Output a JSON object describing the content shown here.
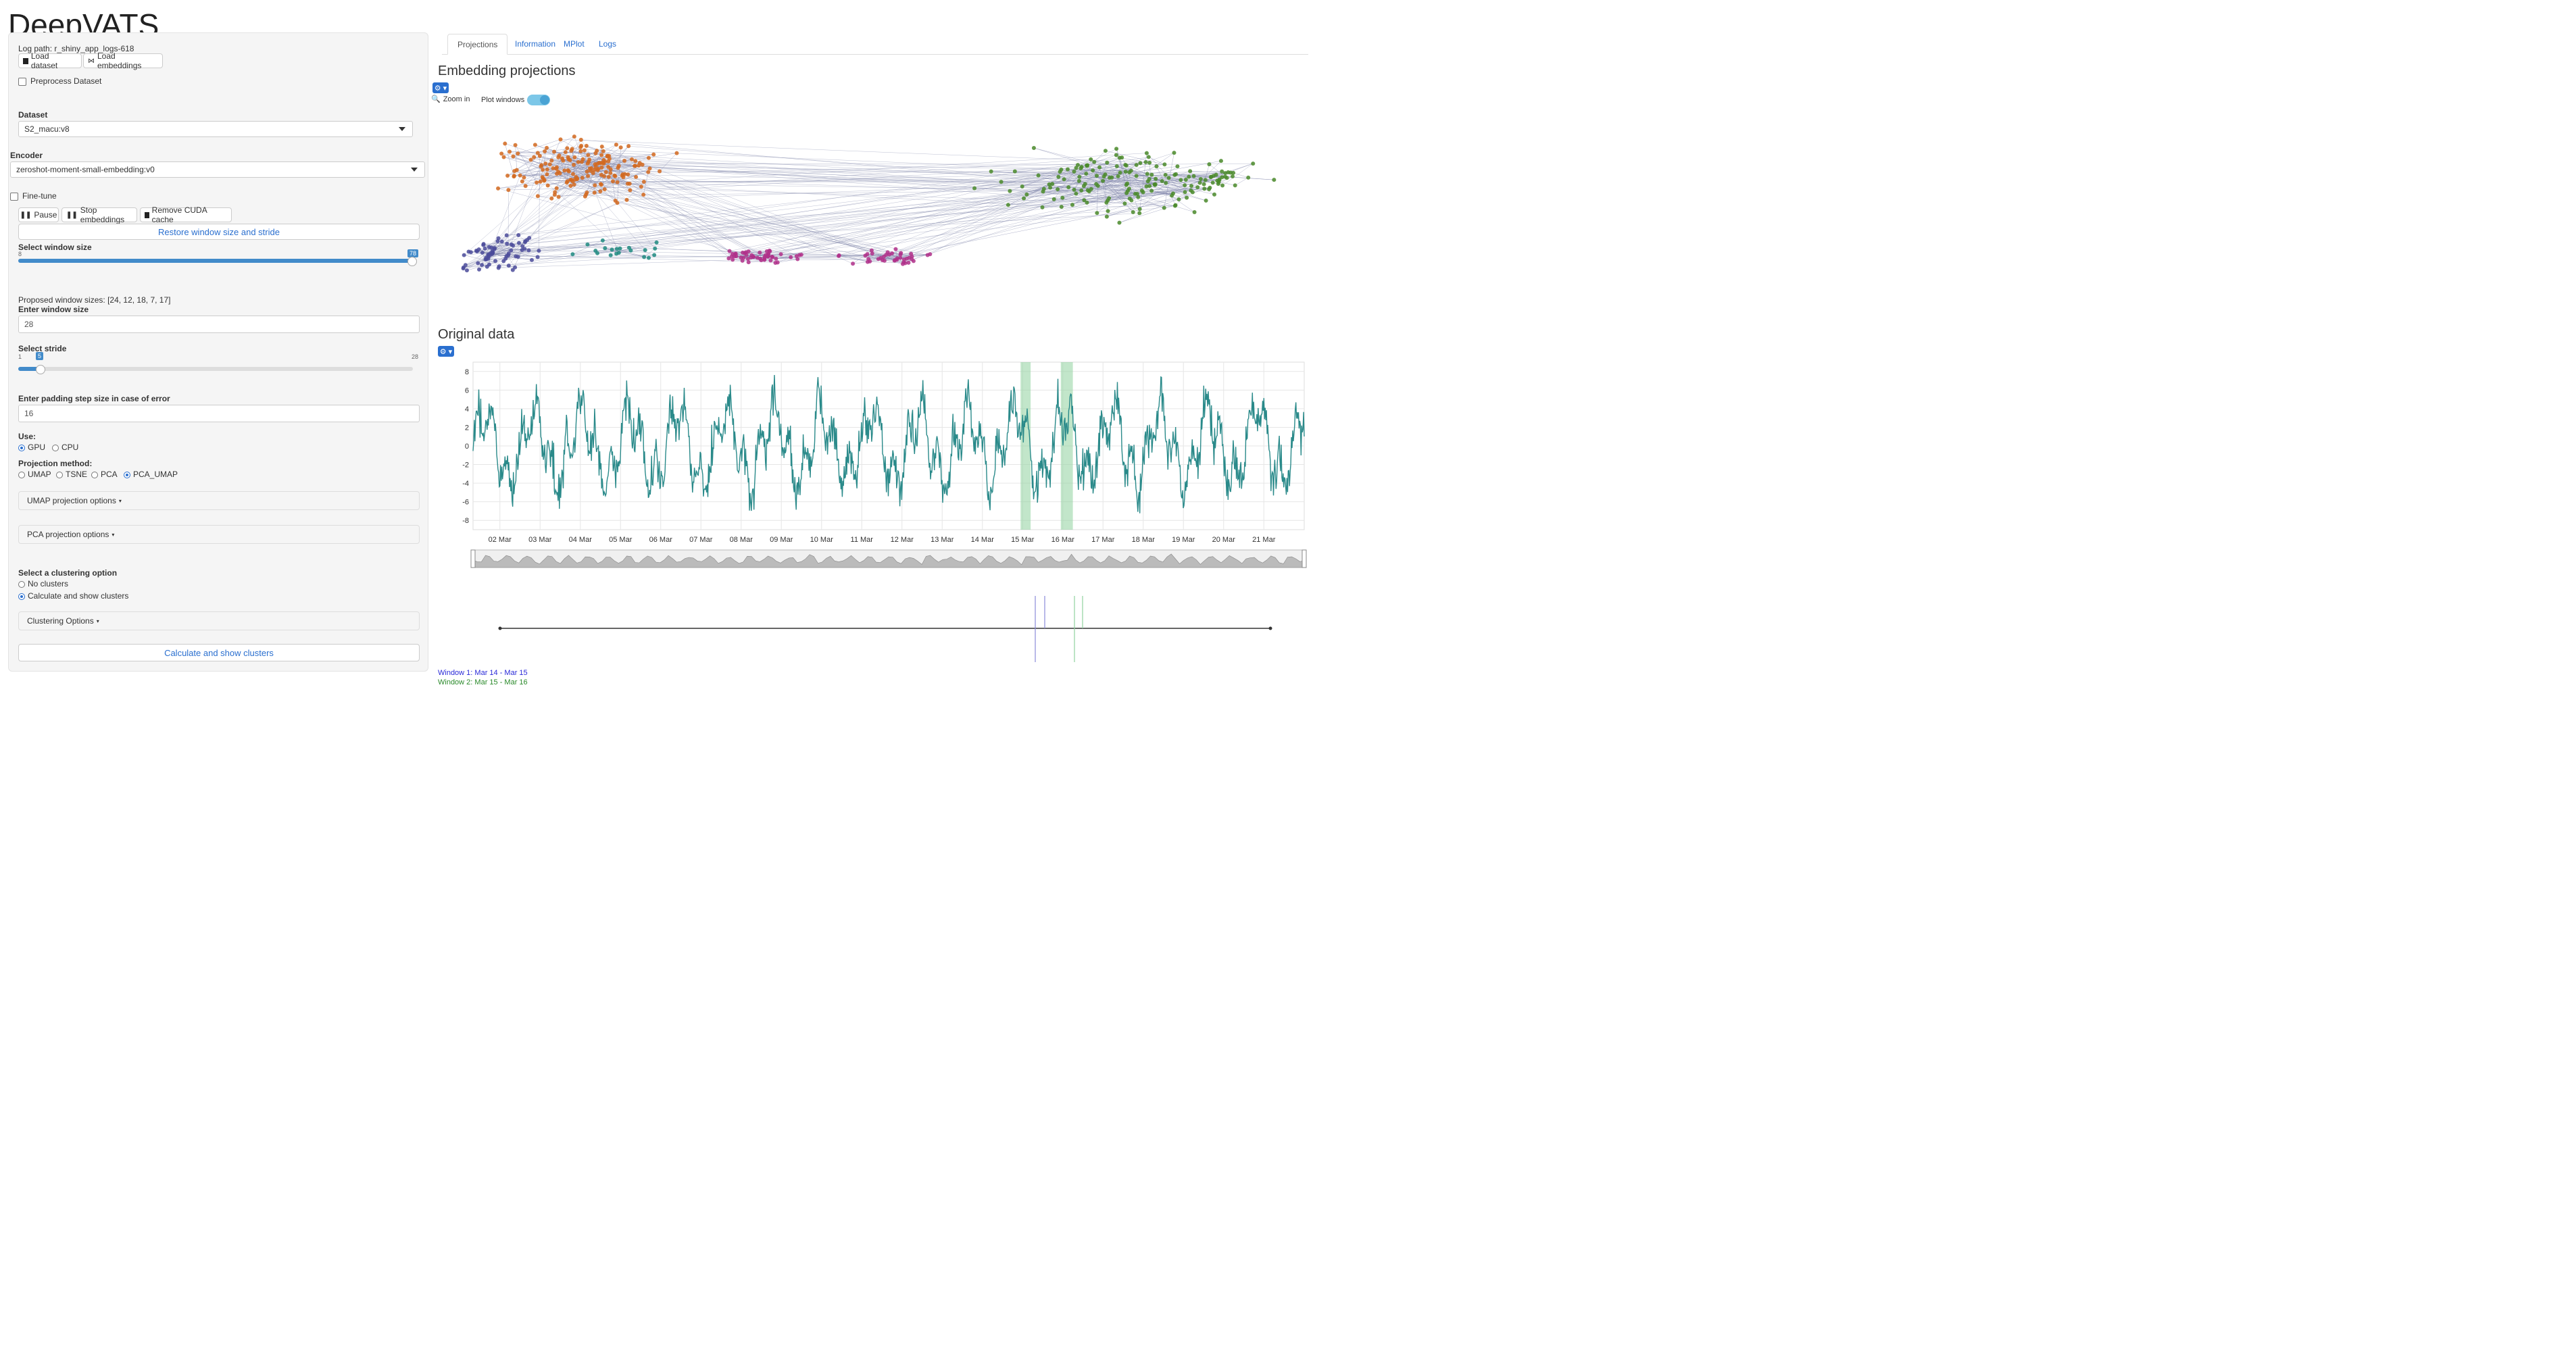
{
  "app": {
    "title": "DeepVATS"
  },
  "sidebar": {
    "log_path": "Log path: r_shiny_app_logs-618",
    "load_dataset": "Load dataset",
    "load_embeddings": "Load embeddings",
    "preprocess": "Preprocess Dataset",
    "dataset_label": "Dataset",
    "dataset_value": "S2_macu:v8",
    "encoder_label": "Encoder",
    "encoder_value": "zeroshot-moment-small-embedding:v0",
    "finetune": "Fine-tune",
    "pause": "Pause",
    "stop_embeddings": "Stop embeddings",
    "remove_cuda": "Remove CUDA cache",
    "restore": "Restore window size and stride",
    "window_size_label": "Select window size",
    "window_size_min": "8",
    "window_size_max": "78",
    "window_size_bubble": "78",
    "proposed": "Proposed window sizes: [24, 12, 18, 7, 17]",
    "enter_window_label": "Enter window size",
    "enter_window_value": "28",
    "stride_label": "Select stride",
    "stride_min": "1",
    "stride_max": "28",
    "stride_bubble": "5",
    "padding_label": "Enter padding step size in case of error",
    "padding_value": "16",
    "use_label": "Use:",
    "use_options": [
      "GPU",
      "CPU"
    ],
    "proj_label": "Projection method:",
    "proj_options": [
      "UMAP",
      "TSNE",
      "PCA",
      "PCA_UMAP"
    ],
    "umap_options": "UMAP projection options",
    "pca_options": "PCA projection options",
    "cluster_label": "Select a clustering option",
    "cluster_options": [
      "No clusters",
      "Calculate and show clusters"
    ],
    "clustering_options": "Clustering Options",
    "calculate_button": "Calculate and show clusters"
  },
  "tabs": [
    "Projections",
    "Information",
    "MPlot",
    "Logs"
  ],
  "projections": {
    "title": "Embedding projections",
    "zoom": "Zoom in",
    "plot_windows": "Plot windows",
    "gear": "⚙ ▾"
  },
  "original": {
    "title": "Original data",
    "gear": "⚙ ▾"
  },
  "windows": {
    "window1": "Window 1: Mar 14 - Mar 15",
    "window2": "Window 2: Mar 15 - Mar 16"
  },
  "colors": {
    "accent": "#2a6fcf",
    "series": "#2a8a8a",
    "highlight": "#8fd19e",
    "cluster_orange": "#d2691e",
    "cluster_purple": "#4b4b9a",
    "cluster_magenta": "#b0308a",
    "cluster_green": "#4a8a2a",
    "cluster_teal": "#1f8a80"
  },
  "chart_data": {
    "type": "line",
    "x": [
      "02 Mar",
      "03 Mar",
      "04 Mar",
      "05 Mar",
      "06 Mar",
      "07 Mar",
      "08 Mar",
      "09 Mar",
      "10 Mar",
      "11 Mar",
      "12 Mar",
      "13 Mar",
      "14 Mar",
      "15 Mar",
      "16 Mar",
      "17 Mar",
      "18 Mar",
      "19 Mar",
      "20 Mar",
      "21 Mar"
    ],
    "yticks": [
      "8",
      "6",
      "4",
      "2",
      "0",
      "-2",
      "-4",
      "-6",
      "-8"
    ],
    "ylim": [
      -9,
      9
    ],
    "grid": true,
    "highlight_windows": [
      [
        "Mar 14",
        "Mar 15"
      ],
      [
        "Mar 15",
        "Mar 16"
      ]
    ]
  }
}
